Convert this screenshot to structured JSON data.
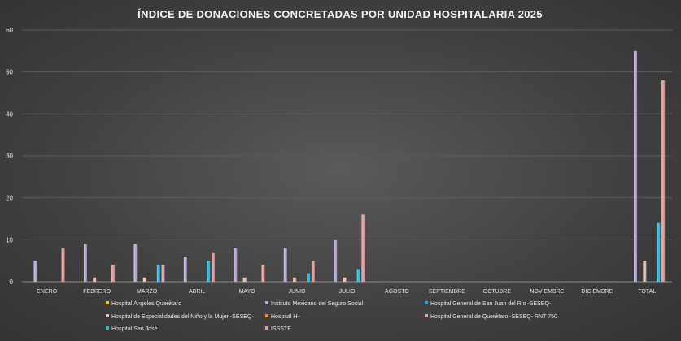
{
  "chart_data": {
    "type": "bar",
    "title": "ÍNDICE DE DONACIONES CONCRETADAS POR UNIDAD HOSPITALARIA 2025",
    "xlabel": "",
    "ylabel": "",
    "ylim": [
      0,
      60
    ],
    "yticks": [
      0,
      10,
      20,
      30,
      40,
      50,
      60
    ],
    "grid": true,
    "legend_position": "bottom",
    "categories": [
      "ENERO",
      "FEBRERO",
      "MARZO",
      "ABRIL",
      "MAYO",
      "JUNIO",
      "JULIO",
      "AGOSTO",
      "SEPTIEMBRE",
      "OCTUBRE",
      "NOVIEMBRE",
      "DICIEMBRE",
      "TOTAL"
    ],
    "series": [
      {
        "name": "Hospital Ángeles Querétaro",
        "color": "#f5c518",
        "values": [
          0,
          0,
          0,
          0,
          0,
          0,
          0,
          0,
          0,
          0,
          0,
          0,
          0
        ]
      },
      {
        "name": "Instituto Mexicano del Seguro Social",
        "color": "#b9a6d6",
        "values": [
          5,
          9,
          9,
          6,
          8,
          8,
          10,
          0,
          0,
          0,
          0,
          0,
          55
        ]
      },
      {
        "name": "Hospital General de San Juan del Río -SESEQ-",
        "color": "#22b0e0",
        "values": [
          0,
          0,
          0,
          0,
          0,
          0,
          0,
          0,
          0,
          0,
          0,
          0,
          0
        ]
      },
      {
        "name": "Hospital de Especialidades del Niño y la Mujer -SESEQ-",
        "color": "#e8c4b0",
        "values": [
          0,
          1,
          1,
          0,
          1,
          1,
          1,
          0,
          0,
          0,
          0,
          0,
          5
        ]
      },
      {
        "name": "Hospital H+",
        "color": "#f08a24",
        "values": [
          0,
          0,
          0,
          0,
          0,
          0,
          0,
          0,
          0,
          0,
          0,
          0,
          0
        ]
      },
      {
        "name": "Hospital General de Querétaro -SESEQ- RNT 750",
        "color": "#e8a0a0",
        "values": [
          0,
          0,
          0,
          0,
          0,
          0,
          0,
          0,
          0,
          0,
          0,
          0,
          0
        ]
      },
      {
        "name": "Hospital San José",
        "color": "#1cc0f0",
        "values": [
          0,
          0,
          4,
          5,
          0,
          2,
          3,
          0,
          0,
          0,
          0,
          0,
          14
        ]
      },
      {
        "name": "ISSSTE",
        "color": "#e89898",
        "values": [
          8,
          4,
          4,
          7,
          4,
          5,
          16,
          0,
          0,
          0,
          0,
          0,
          48
        ]
      }
    ]
  }
}
